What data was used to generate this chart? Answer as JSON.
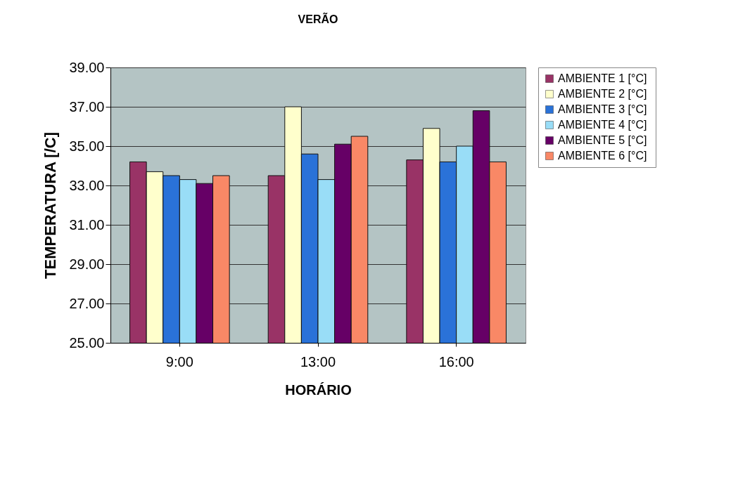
{
  "chart_data": {
    "type": "bar",
    "title": "VERÃO",
    "xlabel": "HORÁRIO",
    "ylabel": "TEMPERATURA [/C]",
    "categories": [
      "9:00",
      "13:00",
      "16:00"
    ],
    "series": [
      {
        "name": "AMBIENTE 1 [°C]",
        "color": "#993366",
        "values": [
          34.2,
          33.5,
          34.3
        ]
      },
      {
        "name": "AMBIENTE 2 [°C]",
        "color": "#ffffcc",
        "values": [
          33.7,
          37.0,
          35.9
        ]
      },
      {
        "name": "AMBIENTE 3  [°C]",
        "color": "#2a72d8",
        "values": [
          33.5,
          34.6,
          34.2
        ]
      },
      {
        "name": "AMBIENTE 4  [°C]",
        "color": "#99ddf7",
        "values": [
          33.3,
          33.3,
          35.0
        ]
      },
      {
        "name": "AMBIENTE 5  [°C]",
        "color": "#660066",
        "values": [
          33.1,
          35.1,
          36.8
        ]
      },
      {
        "name": "AMBIENTE 6  [°C]",
        "color": "#f98866",
        "values": [
          33.5,
          35.5,
          34.2
        ]
      }
    ],
    "ylim": [
      25,
      39
    ],
    "yticks": [
      {
        "value": 25,
        "label": "25.00"
      },
      {
        "value": 27,
        "label": "27.00"
      },
      {
        "value": 29,
        "label": "29.00"
      },
      {
        "value": 31,
        "label": "31.00"
      },
      {
        "value": 33,
        "label": "33.00"
      },
      {
        "value": 35,
        "label": "35.00"
      },
      {
        "value": 37,
        "label": "37.00"
      },
      {
        "value": 39,
        "label": "39.00"
      }
    ],
    "grid": "y",
    "legend": "right"
  }
}
